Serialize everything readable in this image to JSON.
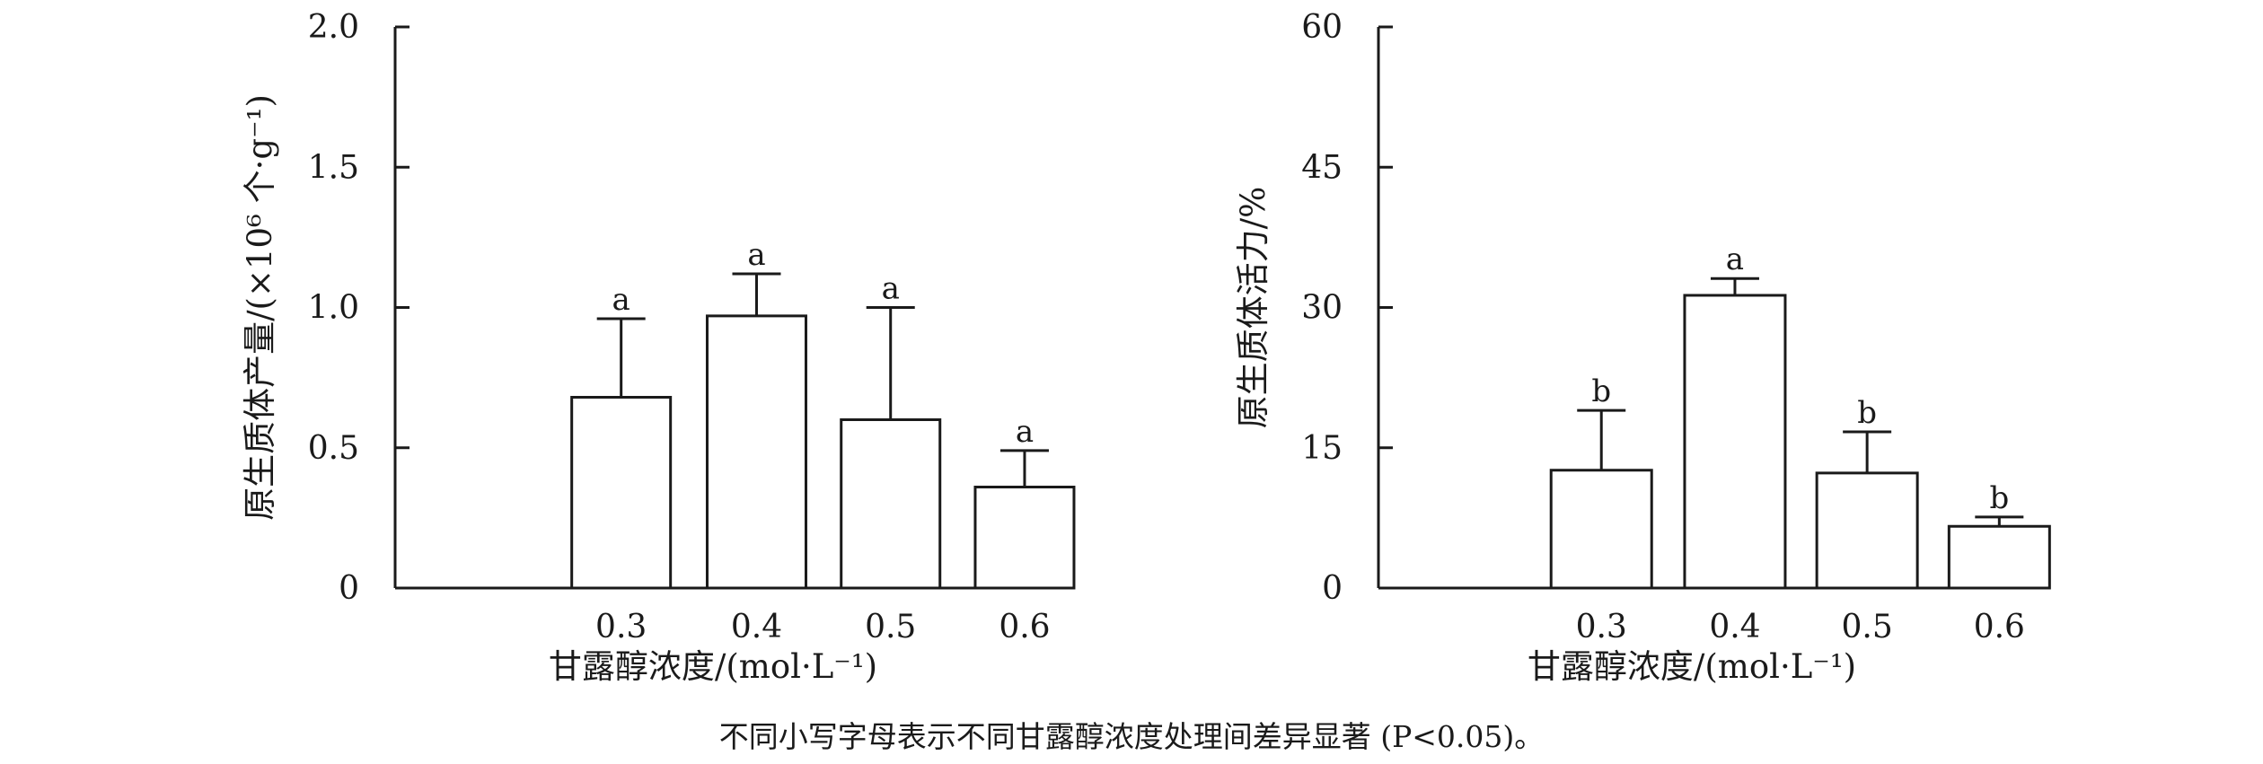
{
  "caption": "不同小写字母表示不同甘露醇浓度处理间差异显著 (P<0.05)。",
  "chart_data": [
    {
      "type": "bar",
      "categories": [
        "0.3",
        "0.4",
        "0.5",
        "0.6"
      ],
      "values": [
        0.68,
        0.97,
        0.6,
        0.36
      ],
      "errors": [
        0.28,
        0.15,
        0.4,
        0.13
      ],
      "significance": [
        "a",
        "a",
        "a",
        "a"
      ],
      "xlabel": "甘露醇浓度/(mol·L⁻¹)",
      "ylabel": "原生质体产量/(×10⁶ 个·g⁻¹)",
      "ylim": [
        0,
        2.0
      ],
      "yticks": [
        "0",
        "0.5",
        "1.0",
        "1.5",
        "2.0"
      ],
      "ytick_values": [
        0,
        0.5,
        1.0,
        1.5,
        2.0
      ],
      "grid": false,
      "bar_fill": "#ffffff",
      "stroke": "#1a1a1a"
    },
    {
      "type": "bar",
      "categories": [
        "0.3",
        "0.4",
        "0.5",
        "0.6"
      ],
      "values": [
        12.6,
        31.3,
        12.3,
        6.6
      ],
      "errors": [
        6.4,
        1.8,
        4.4,
        1.0
      ],
      "significance": [
        "b",
        "a",
        "b",
        "b"
      ],
      "xlabel": "甘露醇浓度/(mol·L⁻¹)",
      "ylabel": "原生质体活力/%",
      "ylim": [
        0,
        60
      ],
      "yticks": [
        "0",
        "15",
        "30",
        "45",
        "60"
      ],
      "ytick_values": [
        0,
        15,
        30,
        45,
        60
      ],
      "grid": false,
      "bar_fill": "#ffffff",
      "stroke": "#1a1a1a"
    }
  ]
}
